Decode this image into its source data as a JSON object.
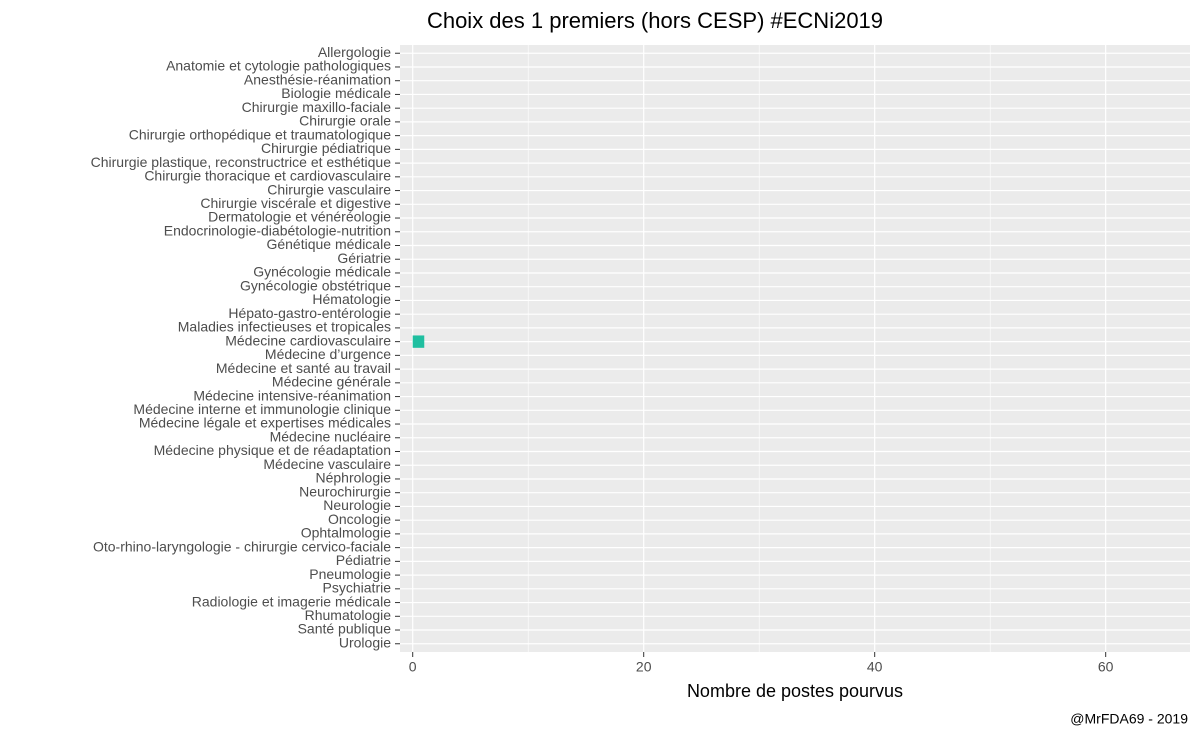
{
  "chart_data": {
    "type": "barh",
    "title": "Choix des 1 premiers (hors CESP) #ECNi2019",
    "xlabel": "Nombre de postes pourvus",
    "caption": "@MrFDA69 - 2019",
    "categories": [
      "Allergologie",
      "Anatomie et cytologie pathologiques",
      "Anesthésie-réanimation",
      "Biologie médicale",
      "Chirurgie maxillo-faciale",
      "Chirurgie orale",
      "Chirurgie orthopédique et traumatologique",
      "Chirurgie pédiatrique",
      "Chirurgie plastique, reconstructrice et esthétique",
      "Chirurgie thoracique et cardiovasculaire",
      "Chirurgie vasculaire",
      "Chirurgie viscérale et digestive",
      "Dermatologie et vénéréologie",
      "Endocrinologie-diabétologie-nutrition",
      "Génétique médicale",
      "Gériatrie",
      "Gynécologie médicale",
      "Gynécologie obstétrique",
      "Hématologie",
      "Hépato-gastro-entérologie",
      "Maladies infectieuses et tropicales",
      "Médecine cardiovasculaire",
      "Médecine d’urgence",
      "Médecine et santé au travail",
      "Médecine générale",
      "Médecine intensive-réanimation",
      "Médecine interne et immunologie clinique",
      "Médecine légale et expertises médicales",
      "Médecine nucléaire",
      "Médecine physique et de réadaptation",
      "Médecine vasculaire",
      "Néphrologie",
      "Neurochirurgie",
      "Neurologie",
      "Oncologie",
      "Ophtalmologie",
      "Oto-rhino-laryngologie - chirurgie cervico-faciale",
      "Pédiatrie",
      "Pneumologie",
      "Psychiatrie",
      "Radiologie et imagerie médicale",
      "Rhumatologie",
      "Santé publique",
      "Urologie"
    ],
    "values": [
      0,
      0,
      0,
      0,
      0,
      0,
      0,
      0,
      0,
      0,
      0,
      0,
      0,
      0,
      0,
      0,
      0,
      0,
      0,
      0,
      0,
      1,
      0,
      0,
      0,
      0,
      0,
      0,
      0,
      0,
      0,
      0,
      0,
      0,
      0,
      0,
      0,
      0,
      0,
      0,
      0,
      0,
      0,
      0
    ],
    "color": "#1fbfa0",
    "xlim": [
      -1.1,
      67.3
    ],
    "xticks": [
      0,
      20,
      40,
      60
    ],
    "xminorticks": [
      10,
      30,
      50
    ],
    "grid": true
  }
}
